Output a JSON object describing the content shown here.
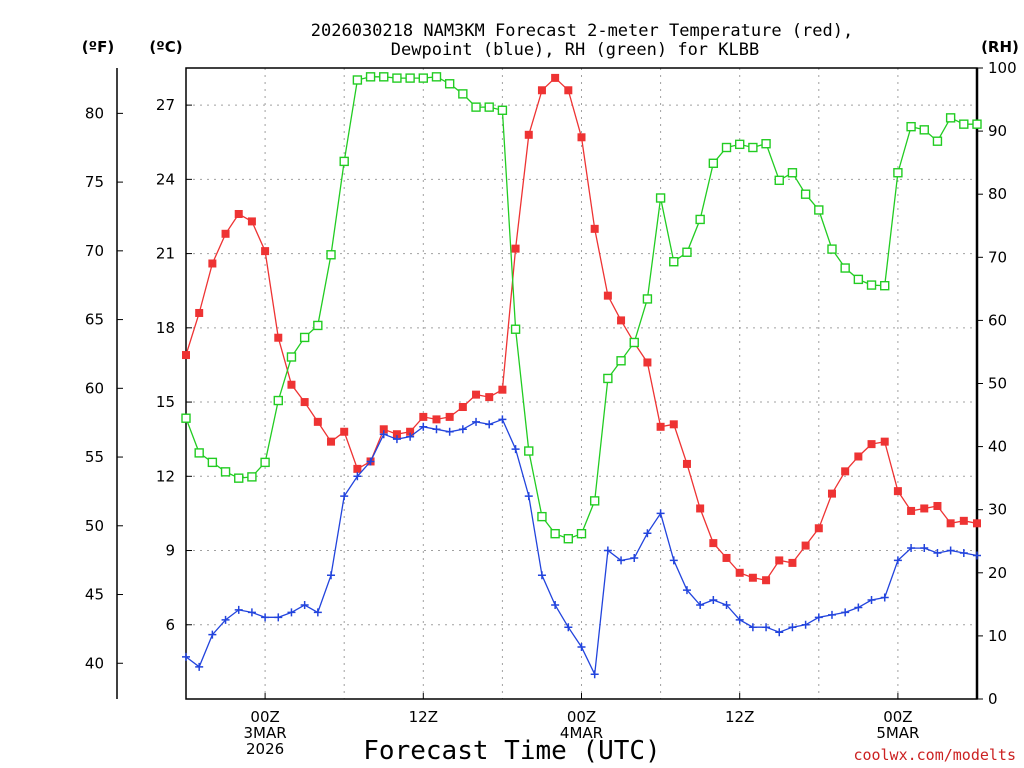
{
  "chart_data": {
    "type": "line",
    "title_line1": "2026030218 NAM3KM Forecast 2-meter Temperature (red),",
    "title_line2": "Dewpoint (blue), RH (green) for KLBB",
    "xlabel": "Forecast Time (UTC)",
    "credit": "coolwx.com/modelts",
    "axes": {
      "fahrenheit": {
        "unit_label": "(ºF)",
        "ticks": [
          40,
          45,
          50,
          55,
          60,
          65,
          70,
          75,
          80
        ]
      },
      "celsius": {
        "unit_label": "(ºC)",
        "range": [
          3,
          28.5
        ],
        "ticks": [
          6,
          9,
          12,
          15,
          18,
          21,
          24,
          27
        ]
      },
      "rh": {
        "unit_label": "(RH)",
        "range": [
          0,
          100
        ],
        "ticks": [
          0,
          10,
          20,
          30,
          40,
          50,
          60,
          70,
          80,
          90,
          100
        ]
      }
    },
    "x_range": [
      -6,
      54
    ],
    "x_ticks": [
      {
        "hour": 0,
        "lines": [
          "00Z",
          "3MAR",
          "2026"
        ]
      },
      {
        "hour": 12,
        "lines": [
          "12Z"
        ]
      },
      {
        "hour": 24,
        "lines": [
          "00Z",
          "4MAR"
        ]
      },
      {
        "hour": 36,
        "lines": [
          "12Z"
        ]
      },
      {
        "hour": 48,
        "lines": [
          "00Z",
          "5MAR"
        ]
      }
    ],
    "series": [
      {
        "name": "2-meter Temperature",
        "unit": "C",
        "color": "#ee3333",
        "marker": "square-filled",
        "hours": [
          -6,
          -5,
          -4,
          -3,
          -2,
          -1,
          0,
          1,
          2,
          3,
          4,
          5,
          6,
          7,
          8,
          9,
          10,
          11,
          12,
          13,
          14,
          15,
          16,
          17,
          18,
          19,
          20,
          21,
          22,
          23,
          24,
          25,
          26,
          27,
          28,
          29,
          30,
          31,
          32,
          33,
          34,
          35,
          36,
          37,
          38,
          39,
          40,
          41,
          42,
          43,
          44,
          45,
          46,
          47,
          48,
          49,
          50,
          51,
          52,
          53,
          54
        ],
        "values": [
          16.9,
          18.6,
          20.6,
          21.8,
          22.6,
          22.3,
          21.1,
          17.6,
          15.7,
          15.0,
          14.2,
          13.4,
          13.8,
          12.3,
          12.6,
          13.9,
          13.7,
          13.8,
          14.4,
          14.3,
          14.4,
          14.8,
          15.3,
          15.2,
          15.5,
          21.2,
          25.8,
          27.6,
          28.1,
          27.6,
          25.7,
          22.0,
          19.3,
          18.3,
          17.4,
          16.6,
          14.0,
          14.1,
          12.5,
          10.7,
          9.3,
          8.7,
          8.1,
          7.9,
          7.8,
          8.6,
          8.5,
          9.2,
          9.9,
          11.3,
          12.2,
          12.8,
          13.3,
          13.4,
          11.4,
          10.6,
          10.7,
          10.8,
          10.1,
          10.2,
          10.1
        ]
      },
      {
        "name": "Dewpoint",
        "unit": "C",
        "color": "#2244dd",
        "marker": "plus",
        "hours": [
          -6,
          -5,
          -4,
          -3,
          -2,
          -1,
          0,
          1,
          2,
          3,
          4,
          5,
          6,
          7,
          8,
          9,
          10,
          11,
          12,
          13,
          14,
          15,
          16,
          17,
          18,
          19,
          20,
          21,
          22,
          23,
          24,
          25,
          26,
          27,
          28,
          29,
          30,
          31,
          32,
          33,
          34,
          35,
          36,
          37,
          38,
          39,
          40,
          41,
          42,
          43,
          44,
          45,
          46,
          47,
          48,
          49,
          50,
          51,
          52,
          53,
          54
        ],
        "values": [
          4.7,
          4.3,
          5.6,
          6.2,
          6.6,
          6.5,
          6.3,
          6.3,
          6.5,
          6.8,
          6.5,
          8.0,
          11.2,
          12.0,
          12.6,
          13.7,
          13.5,
          13.6,
          14.0,
          13.9,
          13.8,
          13.9,
          14.2,
          14.1,
          14.3,
          13.1,
          11.2,
          8.0,
          6.8,
          5.9,
          5.1,
          4.0,
          9.0,
          8.6,
          8.7,
          9.7,
          10.5,
          8.6,
          7.4,
          6.8,
          7.0,
          6.8,
          6.2,
          5.9,
          5.9,
          5.7,
          5.9,
          6.0,
          6.3,
          6.4,
          6.5,
          6.7,
          7.0,
          7.1,
          8.6,
          9.1,
          9.1,
          8.9,
          9.0,
          8.9,
          8.8
        ]
      },
      {
        "name": "RH",
        "unit": "%",
        "color": "#22cc22",
        "marker": "square-open",
        "hours": [
          -6,
          -5,
          -4,
          -3,
          -2,
          -1,
          0,
          1,
          2,
          3,
          4,
          5,
          6,
          7,
          8,
          9,
          10,
          11,
          12,
          13,
          14,
          15,
          16,
          17,
          18,
          19,
          20,
          21,
          22,
          23,
          24,
          25,
          26,
          27,
          28,
          29,
          30,
          31,
          32,
          33,
          34,
          35,
          36,
          37,
          38,
          39,
          40,
          41,
          42,
          43,
          44,
          45,
          46,
          47,
          48,
          49,
          50,
          51,
          52,
          53,
          54
        ],
        "values": [
          44.5,
          39.0,
          37.5,
          36.0,
          35.0,
          35.2,
          37.5,
          47.3,
          54.2,
          57.3,
          59.2,
          70.4,
          85.2,
          98.1,
          98.6,
          98.6,
          98.4,
          98.4,
          98.4,
          98.6,
          97.5,
          95.9,
          93.8,
          93.8,
          93.3,
          58.6,
          39.3,
          28.9,
          26.2,
          25.4,
          26.2,
          31.4,
          50.8,
          53.6,
          56.5,
          63.4,
          79.4,
          69.3,
          70.8,
          76.0,
          84.9,
          87.4,
          87.9,
          87.4,
          88.0,
          82.2,
          83.4,
          80.0,
          77.5,
          71.3,
          68.3,
          66.5,
          65.6,
          65.5,
          83.4,
          90.7,
          90.2,
          88.4,
          92.1,
          91.1,
          91.1
        ]
      }
    ]
  }
}
